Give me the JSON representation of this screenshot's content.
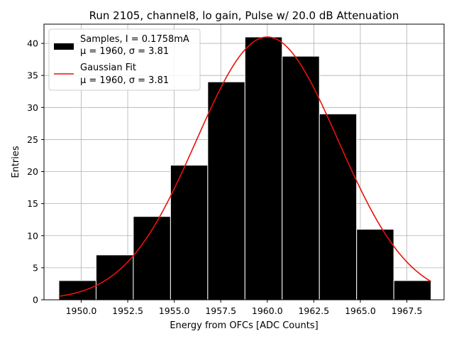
{
  "chart_data": {
    "type": "bar",
    "title": "Run 2105, channel8, lo gain, Pulse w/ 20.0 dB Attenuation",
    "xlabel": "Energy from OFCs [ADC Counts]",
    "ylabel": "Entries",
    "xlim": [
      1948.0,
      1969.5
    ],
    "ylim": [
      0,
      43
    ],
    "xticks": [
      1950.0,
      1952.5,
      1955.0,
      1957.5,
      1960.0,
      1962.5,
      1965.0,
      1967.5
    ],
    "xtick_labels": [
      "1950.0",
      "1952.5",
      "1955.0",
      "1957.5",
      "1960.0",
      "1962.5",
      "1965.0",
      "1967.5"
    ],
    "yticks": [
      0,
      5,
      10,
      15,
      20,
      25,
      30,
      35,
      40
    ],
    "ytick_labels": [
      "0",
      "5",
      "10",
      "15",
      "20",
      "25",
      "30",
      "35",
      "40"
    ],
    "grid": true,
    "histogram": {
      "name": "Samples",
      "bin_edges": [
        1948.8,
        1950.8,
        1952.8,
        1954.8,
        1956.8,
        1958.8,
        1960.8,
        1962.8,
        1964.8,
        1966.8,
        1968.8
      ],
      "counts": [
        3,
        7,
        13,
        21,
        34,
        41,
        38,
        29,
        11,
        3
      ],
      "color": "#000000",
      "edgecolor": "#ffffff"
    },
    "fit": {
      "name": "Gaussian Fit",
      "type": "gaussian",
      "mu": 1960.0,
      "sigma": 3.81,
      "amplitude": 41.0,
      "x_range": [
        1948.8,
        1968.8
      ],
      "color": "#e8120c"
    },
    "legend": {
      "location": "top-left",
      "entries": [
        {
          "line1": "Samples, I = 0.1758mA",
          "line2": "μ = 1960, σ = 3.81"
        },
        {
          "line1": "Gaussian Fit",
          "line2": "μ = 1960, σ = 3.81"
        }
      ]
    }
  }
}
